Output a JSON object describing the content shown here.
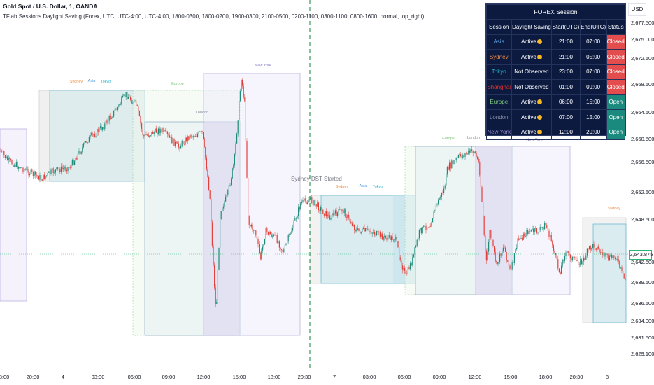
{
  "header": {
    "title": "Gold Spot / U.S. Dollar, 1, OANDA",
    "indicator": "TFlab Sessions Daylight Saving (Forex, UTC, UTC-4:00, UTC-4:00, 1800-0300, 1800-0200, 1900-0300, 2100-0500, 0200-1100, 0300-1100, 0800-1600, normal, top_right)"
  },
  "currency_button": "USD",
  "price_axis": [
    "2,677.500",
    "2,675.000",
    "2,672.500",
    "2,668.500",
    "2,664.500",
    "2,660.500",
    "2,656.500",
    "2,652.500",
    "2,648.500",
    "2,642.500",
    "2,639.500",
    "2,636.500",
    "2,634.000",
    "2,631.500",
    "2,629.100"
  ],
  "last_price": "2,643.875",
  "time_axis": [
    "8:00",
    "20:30",
    "4",
    "03:00",
    "06:00",
    "09:00",
    "12:00",
    "15:00",
    "18:00",
    "20:30",
    "7",
    "03:00",
    "06:00",
    "09:00",
    "12:00",
    "15:00",
    "18:00",
    "20:30",
    "8"
  ],
  "annotation_dst": "Sydney DST Started",
  "session_labels": [
    "Sydney",
    "Asia",
    "Tokyo",
    "Europe",
    "London",
    "New York",
    "Sydney",
    "Asia",
    "Tokyo",
    "Europe",
    "London",
    "New York",
    "Sydney"
  ],
  "colors": {
    "sydney": "#f08a42",
    "asia": "#5aa0e0",
    "tokyo": "#20b5cf",
    "shanghai": "#e0312f",
    "europe": "#7ec87e",
    "london": "#8a8fa8",
    "newyork": "#8e84c8",
    "closed": "#e34d4d",
    "open": "#1b8a7e",
    "up": "#1e8c78",
    "down": "#e2403a"
  },
  "forex_table": {
    "title": "FOREX Session",
    "columns": [
      "Session",
      "Daylight Saving",
      "Start(UTC)",
      "End(UTC)",
      "Status"
    ],
    "rows": [
      {
        "session": "Asia",
        "dst": "Active",
        "start": "21:00",
        "end": "07:00",
        "status": "Closed"
      },
      {
        "session": "Sydney",
        "dst": "Active",
        "start": "21:00",
        "end": "05:00",
        "status": "Closed"
      },
      {
        "session": "Tokyo",
        "dst": "Not Observed",
        "start": "23:00",
        "end": "07:00",
        "status": "Closed"
      },
      {
        "session": "Shanghai",
        "dst": "Not Observed",
        "start": "01:00",
        "end": "09:00",
        "status": "Closed"
      },
      {
        "session": "Europe",
        "dst": "Active",
        "start": "06:00",
        "end": "15:00",
        "status": "Open"
      },
      {
        "session": "London",
        "dst": "Active",
        "start": "07:00",
        "end": "15:00",
        "status": "Open"
      },
      {
        "session": "New York",
        "dst": "Active",
        "start": "12:00",
        "end": "20:00",
        "status": "Open"
      }
    ]
  }
}
